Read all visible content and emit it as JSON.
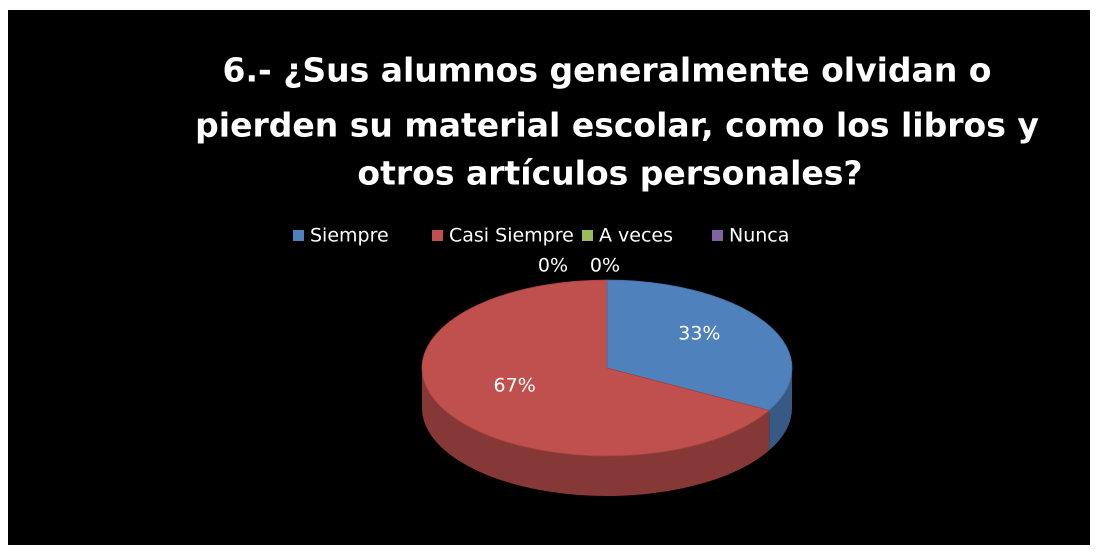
{
  "chart_data": {
    "type": "pie",
    "title": [
      "6.- ¿Sus alumnos generalmente olvidan o",
      "pierden su material escolar, como los libros y",
      "otros artículos personales?"
    ],
    "categories": [
      "Siempre",
      "Casi Siempre",
      "A veces",
      "Nunca"
    ],
    "values": [
      33,
      67,
      0,
      0
    ],
    "value_labels": [
      "33%",
      "67%",
      "0%",
      "0%"
    ],
    "colors": [
      "#4f81bd",
      "#c0504d",
      "#9bbb59",
      "#8064a2"
    ],
    "legend": "top"
  }
}
